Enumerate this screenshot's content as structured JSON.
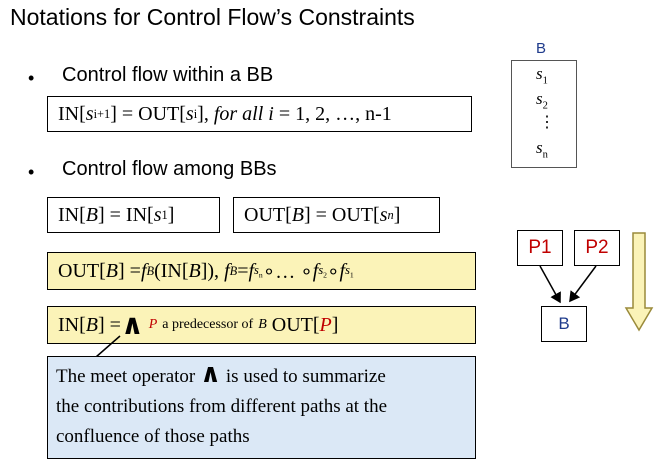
{
  "title": "Notations for Control Flow’s Constraints",
  "section1": {
    "bullet": "•",
    "text": "Control flow within a BB",
    "formula": {
      "in": "IN[",
      "s": "s",
      "i_plus_1": "i+1",
      "mid": "] = OUT[",
      "i": "i",
      "close": "],",
      "for_all_i": "for all i",
      "range": "= 1, 2, …, n-1"
    }
  },
  "section2": {
    "bullet": "•",
    "text": "Control flow among BBs",
    "box1": {
      "pre": "IN[",
      "B": "B",
      "mid": "] = IN[",
      "s": "s",
      "sub": "1",
      "post": "]"
    },
    "box2": {
      "pre": "OUT[",
      "B": "B",
      "mid": "] = OUT[",
      "s": "s",
      "sub": "n",
      "post": "]"
    },
    "transfer": {
      "p1": "OUT[",
      "B": "B",
      "p2": "] = ",
      "f": "f",
      "p3": "(IN[",
      "p4": "]), ",
      "p5": " = ",
      "sub_n": "n",
      "comp1": " ∘… ∘ ",
      "sub_2": "2",
      "comp2": " ∘ ",
      "sub_1": "1"
    },
    "meet": {
      "p1": "IN[",
      "B": "B",
      "p2": "] = ",
      "op": "∧",
      "P": "P",
      "desc": "a predecessor of",
      "descB": "B",
      "p3": "OUT[",
      "p4": "]"
    }
  },
  "note": {
    "line1_a": "The meet operator",
    "op": "∧",
    "line1_b": "is used to summarize",
    "line2": "the contributions from different paths at the",
    "line3": "confluence of those paths"
  },
  "block_diagram": {
    "label": "B",
    "s": "s",
    "sub1": "1",
    "sub2": "2",
    "subn": "n",
    "dots": "⋮"
  },
  "pred_diagram": {
    "p1": "P1",
    "p2": "P2",
    "b": "B"
  },
  "colors": {
    "formula_box": "#fbf3b8",
    "note_box": "#dbe8f6",
    "red": "#c00000",
    "blue": "#1f3b8c",
    "arrow_fill": "#fbf3b8"
  }
}
